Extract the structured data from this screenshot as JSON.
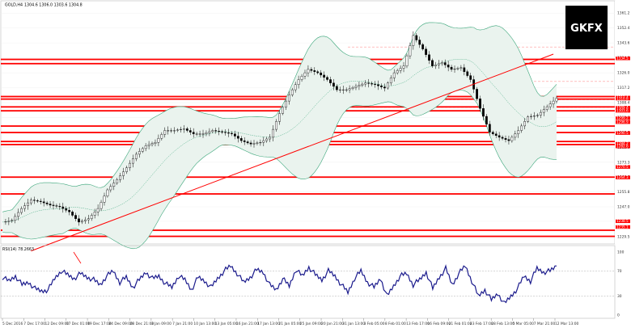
{
  "chart_data": [
    {
      "type": "line",
      "symbol_label": "GOLD,H4",
      "ohlc_label": "1304.6 1306.0 1303.6 1304.8",
      "price_range": [
        1227,
        1367
      ],
      "price_ticks": [
        1229.5,
        1238.5,
        1247.0,
        1255.8,
        1264.6,
        1273.3,
        1282.0,
        1290.8,
        1299.6,
        1308.4,
        1317.2,
        1326.0,
        1334.8,
        1343.6,
        1352.4,
        1361.2
      ],
      "time_labels": [
        "5 Dec 2016",
        "7 Dec 17:00",
        "12 Dec 09:00",
        "17 Dec 01:00",
        "19 Dec 17:00",
        "24 Dec 09:00",
        "28 Dec 21:00",
        "3 Jan 09:00",
        "7 Jan 21:00",
        "10 Jan 13:00",
        "13 Jan 05:00",
        "16 Jan 21:00",
        "17 Jan 13:00",
        "21 Jan 05:00",
        "25 Jan 09:00",
        "20 Jan 21:00",
        "31 Jan 13:00",
        "3 Feb 05:00",
        "8 Feb 01:00",
        "13 Feb 17:00",
        "16 Feb 09:00",
        "21 Feb 01:00",
        "23 Feb 17:00",
        "28 Feb 13:00",
        "5 Mar 05:00",
        "7 Mar 21:00",
        "12 Mar 13:00"
      ],
      "price_series": {
        "name": "Close",
        "points": [
          [
            0,
            1238
          ],
          [
            3,
            1239
          ],
          [
            6,
            1246
          ],
          [
            9,
            1251
          ],
          [
            12,
            1250
          ],
          [
            15,
            1248
          ],
          [
            18,
            1247
          ],
          [
            21,
            1244
          ],
          [
            24,
            1238
          ],
          [
            27,
            1240
          ],
          [
            30,
            1246
          ],
          [
            33,
            1257
          ],
          [
            36,
            1263
          ],
          [
            39,
            1270
          ],
          [
            42,
            1278
          ],
          [
            45,
            1283
          ],
          [
            48,
            1285
          ],
          [
            51,
            1292
          ],
          [
            54,
            1292
          ],
          [
            57,
            1293
          ],
          [
            60,
            1290
          ],
          [
            63,
            1290
          ],
          [
            66,
            1292
          ],
          [
            69,
            1291
          ],
          [
            72,
            1290
          ],
          [
            75,
            1286
          ],
          [
            78,
            1284
          ],
          [
            81,
            1285
          ],
          [
            84,
            1288
          ],
          [
            87,
            1302
          ],
          [
            90,
            1313
          ],
          [
            93,
            1322
          ],
          [
            96,
            1328
          ],
          [
            99,
            1326
          ],
          [
            102,
            1322
          ],
          [
            105,
            1316
          ],
          [
            108,
            1316
          ],
          [
            111,
            1318
          ],
          [
            114,
            1320
          ],
          [
            117,
            1319
          ],
          [
            120,
            1317
          ],
          [
            123,
            1326
          ],
          [
            126,
            1330
          ],
          [
            129,
            1348
          ],
          [
            132,
            1340
          ],
          [
            135,
            1330
          ],
          [
            138,
            1332
          ],
          [
            141,
            1328
          ],
          [
            144,
            1329
          ],
          [
            147,
            1322
          ],
          [
            150,
            1305
          ],
          [
            153,
            1291
          ],
          [
            156,
            1288
          ],
          [
            159,
            1286
          ],
          [
            162,
            1292
          ],
          [
            165,
            1300
          ],
          [
            168,
            1301
          ],
          [
            171,
            1306
          ],
          [
            174,
            1311
          ]
        ]
      },
      "support_resistance_levels": [
        1333.9,
        1331.4,
        1312.0,
        1310.5,
        1305.9,
        1303.6,
        1294.6,
        1290.8,
        1285.5,
        1283.7,
        1264.5,
        1254.6,
        1233.2,
        1229.6
      ],
      "level_badges": [
        "1334.5",
        "1311.4",
        "1310.8",
        "1305.4",
        "1304.8",
        "1303.6",
        "1299.2",
        "1296.9",
        "1290.5",
        "1284.2",
        "1282.6",
        "1270.5",
        "1264.3",
        "1238.5",
        "1235.1"
      ],
      "fib_levels": [
        1341.2,
        1320.9,
        1310.0,
        1305.4
      ],
      "trendline": {
        "from": [
          9,
          1221
        ],
        "to": [
          173,
          1337
        ]
      },
      "indicator_label": "RSI(14) 78.2663",
      "rsi_levels": {
        "upper": 70,
        "lower": 30
      },
      "rsi_ticks": [
        "100",
        "70",
        "30",
        "0"
      ],
      "rsi_series": [
        60,
        54,
        62,
        48,
        52,
        42,
        38,
        40,
        58,
        70,
        64,
        58,
        66,
        60,
        56,
        48,
        62,
        70,
        52,
        60,
        44,
        56,
        68,
        58,
        62,
        50,
        44,
        62,
        56,
        40,
        60,
        54,
        44,
        58,
        70,
        78,
        66,
        52,
        60,
        72,
        68,
        48,
        40,
        58,
        46,
        72,
        62,
        76,
        64,
        56,
        70,
        62,
        48,
        36,
        58,
        70,
        52,
        44,
        58,
        30,
        46,
        62,
        66,
        48,
        56,
        68,
        42,
        60,
        74,
        48,
        66,
        78,
        54,
        30,
        40,
        24,
        34,
        18,
        30,
        42,
        62,
        54,
        74,
        68,
        70,
        78
      ],
      "logo_text": "GKFX",
      "colors": {
        "support": "#ff0000",
        "trend": "#ff0000",
        "fib": "#ff9999",
        "bands": "#3aa67a",
        "rsi": "#1a1a8c",
        "candle": "#000000",
        "fill": "#eaf3ee"
      }
    }
  ]
}
